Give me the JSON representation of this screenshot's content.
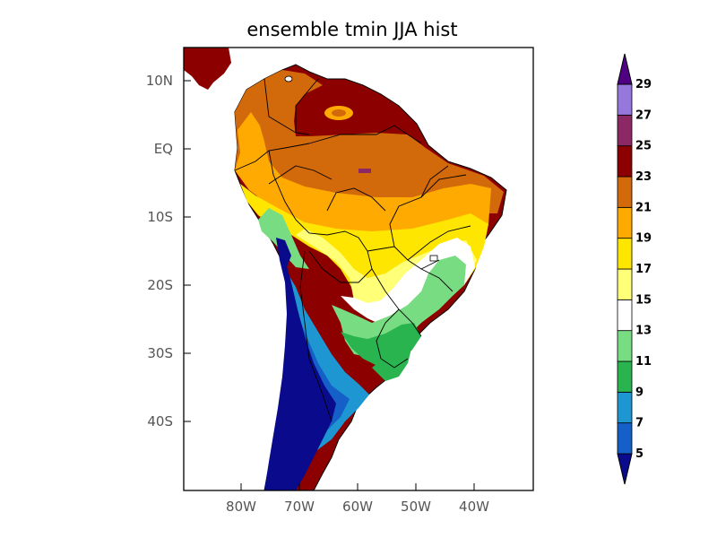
{
  "title": "ensemble tmin JJA hist",
  "lat_ticks": [
    "10N",
    "EQ",
    "10S",
    "20S",
    "30S",
    "40S"
  ],
  "lon_ticks": [
    "80W",
    "70W",
    "60W",
    "50W",
    "40W"
  ],
  "colorbar": {
    "labels": [
      "5",
      "7",
      "9",
      "11",
      "13",
      "15",
      "17",
      "19",
      "21",
      "23",
      "25",
      "27",
      "29"
    ],
    "colors": [
      "#0a0a8c",
      "#1560c8",
      "#1e96d2",
      "#2ab450",
      "#78dc82",
      "#ffffff",
      "#ffff78",
      "#ffe600",
      "#ffaa00",
      "#d2690a",
      "#8c0000",
      "#8c2864",
      "#9678dc",
      "#500082"
    ]
  }
}
